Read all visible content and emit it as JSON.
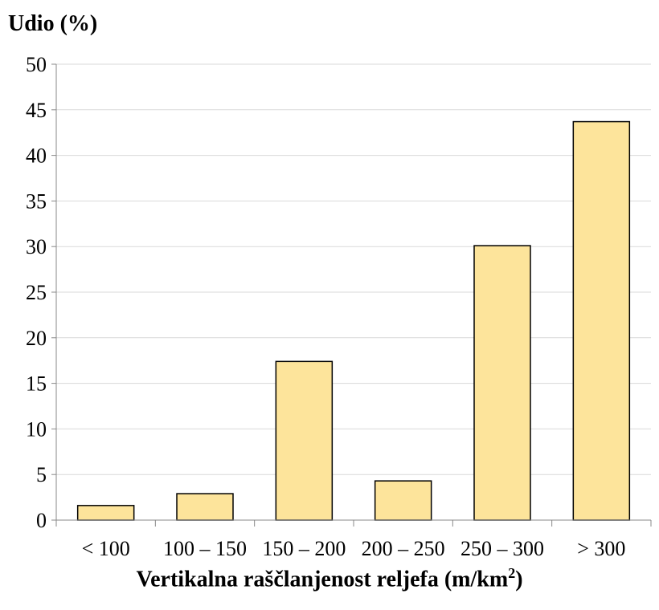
{
  "chart_data": {
    "type": "bar",
    "categories": [
      "< 100",
      "100 – 150",
      "150 – 200",
      "200 – 250",
      "250 – 300",
      "> 300"
    ],
    "values": [
      1.6,
      2.9,
      17.4,
      4.3,
      30.1,
      43.7
    ],
    "ylabel": "Udio (%)",
    "xlabel_main": "Vertikalna raščlanjenost reljefa (m/km",
    "xlabel_sup": "2",
    "xlabel_end": ")",
    "ylim": [
      0,
      50
    ],
    "yticks": [
      "0",
      "5",
      "10",
      "15",
      "20",
      "25",
      "30",
      "35",
      "40",
      "45",
      "50"
    ],
    "grid": true,
    "bar_color": "#fde49b",
    "bar_edge_color": "#000000",
    "grid_color": "#d9d9d9",
    "axis_color": "#888888"
  }
}
